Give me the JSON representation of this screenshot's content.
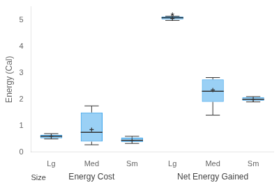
{
  "chart_data": {
    "type": "box",
    "ylabel": "Energy (Cal)",
    "x_label": "Size",
    "categories": [
      "Lg",
      "Med",
      "Sm",
      "Lg",
      "Med",
      "Sm"
    ],
    "groups": [
      "Energy Cost",
      "Energy Cost",
      "Energy Cost",
      "Net Energy Gained",
      "Net Energy Gained",
      "Net Energy Gained"
    ],
    "q1": [
      0.53,
      0.4,
      0.38,
      5.02,
      1.9,
      1.95
    ],
    "median": [
      0.6,
      0.75,
      0.45,
      5.08,
      2.3,
      2.0
    ],
    "q3": [
      0.65,
      1.5,
      0.55,
      5.12,
      2.75,
      2.08
    ],
    "mean": [
      0.6,
      0.85,
      0.45,
      5.05,
      2.35,
      2.0
    ],
    "whislo": [
      0.5,
      0.28,
      0.33,
      4.98,
      1.4,
      1.9
    ],
    "whishi": [
      0.7,
      1.75,
      0.6,
      5.14,
      2.82,
      2.1
    ],
    "annotations": [
      {
        "text": "*",
        "index": 3,
        "y": 5.22
      }
    ],
    "ylim": [
      0,
      5.5
    ],
    "yticks": [
      0,
      1,
      2,
      3,
      4,
      5
    ],
    "grid": false
  }
}
